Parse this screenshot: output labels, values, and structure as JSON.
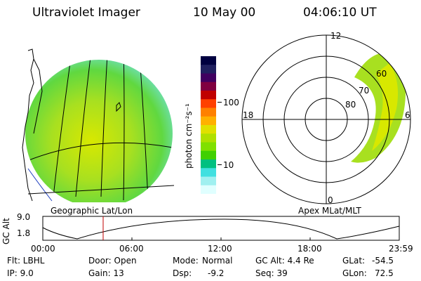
{
  "header": {
    "instrument": "Ultraviolet Imager",
    "date": "10 May 00",
    "time": "04:06:10 UT"
  },
  "colorbar": {
    "unit": "photon cm⁻²s⁻¹",
    "ticks": [
      "100",
      "10"
    ],
    "colors": [
      "#000040",
      "#202060",
      "#400060",
      "#800040",
      "#c00000",
      "#ff4000",
      "#ff8000",
      "#ffb000",
      "#e0e000",
      "#b0e000",
      "#80e000",
      "#40d000",
      "#00c080",
      "#40e0e0",
      "#a0f0f0",
      "#e0ffff"
    ]
  },
  "polar_plot": {
    "labels": {
      "top": "12",
      "bottom": "0",
      "left": "18",
      "right": "6"
    },
    "lat_rings": [
      "60",
      "70",
      "80"
    ]
  },
  "panel_titles": {
    "left": "Geographic Lat/Lon",
    "right": "Apex MLat/MLT"
  },
  "altitude_plot": {
    "ylabel": "GC Alt",
    "yticks": [
      "9.0",
      "1.8"
    ],
    "xticks": [
      "00:00",
      "06:00",
      "12:00",
      "18:00",
      "23:59"
    ],
    "marker_color": "#c00000"
  },
  "status": {
    "row1": {
      "flt": "Flt: LBHL",
      "door": "Door: Open",
      "mode_label": "Mode:",
      "mode_value": "Normal",
      "gcalt": "GC Alt: 4.4 Re",
      "glat_label": "GLat:",
      "glat_value": "-54.5"
    },
    "row2": {
      "ip": "IP:  9.0",
      "gain": "Gain: 13",
      "dsp_label": "Dsp:",
      "dsp_value": "-9.2",
      "seq": "Seq: 39",
      "glon_label": "GLon:",
      "glon_value": "72.5"
    }
  }
}
